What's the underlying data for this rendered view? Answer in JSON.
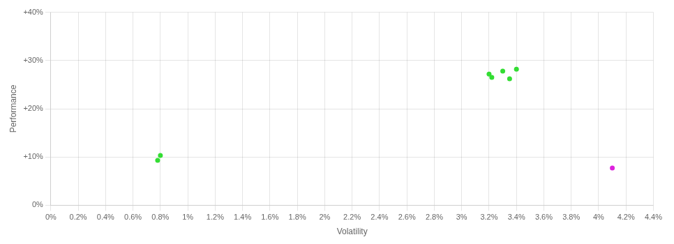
{
  "chart_data": {
    "type": "scatter",
    "xlabel": "Volatility",
    "ylabel": "Performance",
    "xlim": [
      0.0,
      0.044
    ],
    "ylim": [
      0.0,
      0.4
    ],
    "xticks": [
      {
        "value": 0.0,
        "label": "0%"
      },
      {
        "value": 0.002,
        "label": "0.2%"
      },
      {
        "value": 0.004,
        "label": "0.4%"
      },
      {
        "value": 0.006,
        "label": "0.6%"
      },
      {
        "value": 0.008,
        "label": "0.8%"
      },
      {
        "value": 0.01,
        "label": "1%"
      },
      {
        "value": 0.012,
        "label": "1.2%"
      },
      {
        "value": 0.014,
        "label": "1.4%"
      },
      {
        "value": 0.016,
        "label": "1.6%"
      },
      {
        "value": 0.018,
        "label": "1.8%"
      },
      {
        "value": 0.02,
        "label": "2%"
      },
      {
        "value": 0.022,
        "label": "2.2%"
      },
      {
        "value": 0.024,
        "label": "2.4%"
      },
      {
        "value": 0.026,
        "label": "2.6%"
      },
      {
        "value": 0.028,
        "label": "2.8%"
      },
      {
        "value": 0.03,
        "label": "3%"
      },
      {
        "value": 0.032,
        "label": "3.2%"
      },
      {
        "value": 0.034,
        "label": "3.4%"
      },
      {
        "value": 0.036,
        "label": "3.6%"
      },
      {
        "value": 0.038,
        "label": "3.8%"
      },
      {
        "value": 0.04,
        "label": "4%"
      },
      {
        "value": 0.042,
        "label": "4.2%"
      },
      {
        "value": 0.044,
        "label": "4.4%"
      }
    ],
    "yticks": [
      {
        "value": 0.0,
        "label": "0%"
      },
      {
        "value": 0.1,
        "label": "+10%"
      },
      {
        "value": 0.2,
        "label": "+20%"
      },
      {
        "value": 0.3,
        "label": "+30%"
      },
      {
        "value": 0.4,
        "label": "+40%"
      }
    ],
    "grid": true,
    "series": [
      {
        "color": "#33dd33",
        "x": [
          0.008,
          0.0078,
          0.032,
          0.0322,
          0.033,
          0.034,
          0.0335
        ],
        "values": [
          0.103,
          0.093,
          0.272,
          0.265,
          0.278,
          0.282,
          0.262
        ]
      },
      {
        "color": "#dd22dd",
        "x": [
          0.041
        ],
        "values": [
          0.077
        ]
      }
    ]
  }
}
